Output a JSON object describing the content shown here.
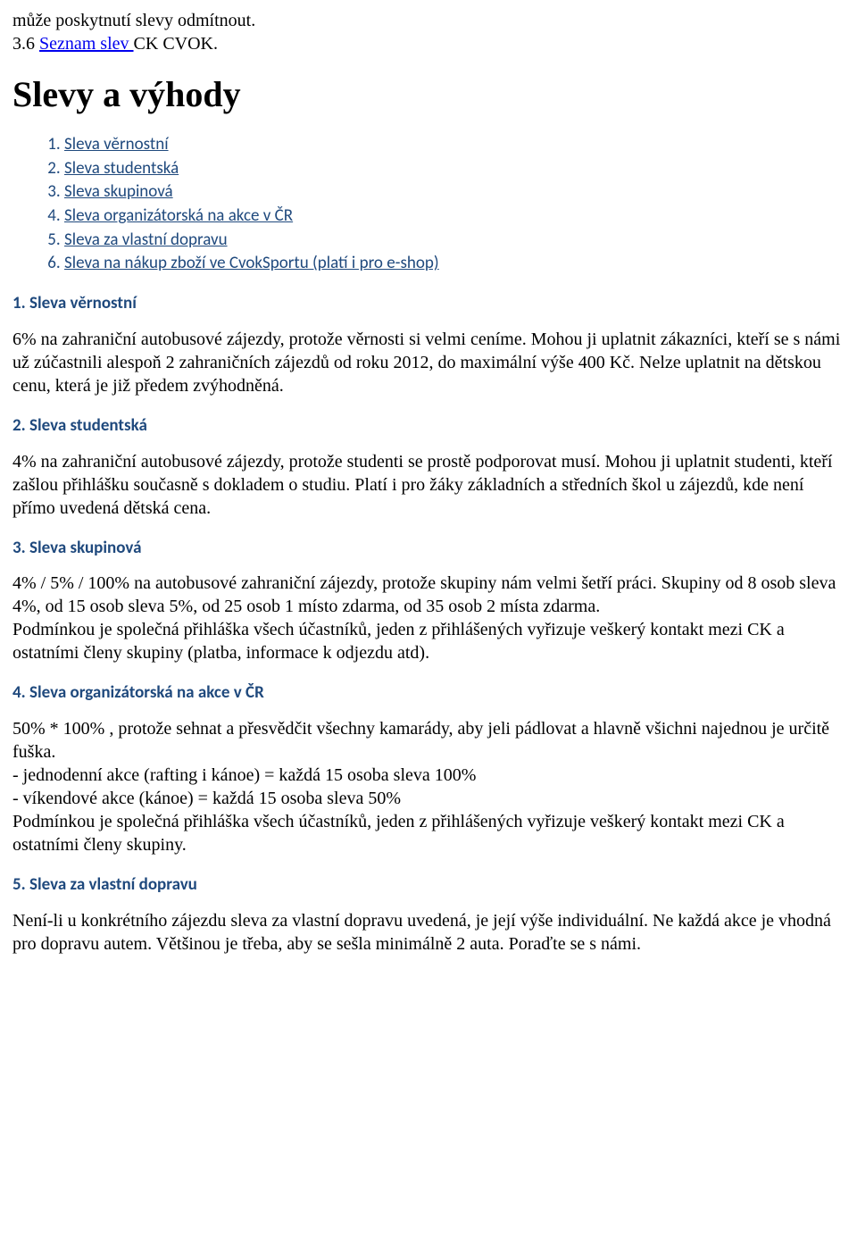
{
  "intro": {
    "line1": "může poskytnutí slevy odmítnout.",
    "line2_prefix": "3.6 ",
    "line2_link": "Seznam slev ",
    "line2_suffix": " CK CVOK."
  },
  "title": "Slevy a výhody",
  "toc": [
    "Sleva věrnostní",
    "Sleva studentská",
    "Sleva skupinová",
    "Sleva organizátorská na akce v ČR",
    "Sleva za vlastní dopravu",
    "Sleva na nákup zboží ve CvokSportu (platí i pro e-shop)"
  ],
  "sections": {
    "s1": {
      "heading": "1. Sleva věrnostní",
      "body": "6%  na zahraniční autobusové zájezdy, protože věrnosti si velmi ceníme. Mohou ji uplatnit zákazníci, kteří se s námi už zúčastnili alespoň 2 zahraničních zájezdů od roku 2012, do maximální výše 400 Kč. Nelze uplatnit na dětskou cenu, která je již předem zvýhodněná."
    },
    "s2": {
      "heading": "2. Sleva studentská",
      "body": "4%  na zahraniční autobusové zájezdy, protože studenti se prostě podporovat musí. Mohou ji uplatnit studenti, kteří zašlou přihlášku současně s dokladem o studiu. Platí i pro žáky základních a středních škol u zájezdů, kde není přímo uvedená dětská cena."
    },
    "s3": {
      "heading": "3. Sleva skupinová",
      "body_p1": "4% / 5% / 100%  na autobusové zahraniční zájezdy, protože skupiny nám velmi šetří práci. Skupiny od 8 osob sleva 4%, od 15 osob sleva 5%, od 25 osob 1 místo zdarma, od 35 osob 2 místa zdarma.",
      "body_p2": "Podmínkou je společná přihláška všech účastníků, jeden z přihlášených vyřizuje veškerý kontakt mezi CK a ostatními členy skupiny (platba, informace k odjezdu atd)."
    },
    "s4": {
      "heading": "4. Sleva organizátorská na akce v ČR",
      "body_l1": "50% * 100% , protože sehnat a přesvědčit všechny kamarády, aby jeli pádlovat a hlavně všichni najednou je určitě fuška.",
      "body_l2": "- jednodenní akce (rafting i kánoe) = každá 15 osoba sleva 100%",
      "body_l3": "- víkendové akce (kánoe) = každá 15 osoba sleva 50%",
      "body_l4": "Podmínkou je společná přihláška všech účastníků, jeden z přihlášených vyřizuje veškerý kontakt mezi CK a ostatními členy skupiny."
    },
    "s5": {
      "heading": "5. Sleva za vlastní dopravu",
      "body": "Není-li u konkrétního zájezdu sleva za vlastní dopravu uvedená, je její výše individuální. Ne každá akce je vhodná pro dopravu autem. Většinou je třeba, aby se sešla minimálně 2 auta. Poraďte se s námi."
    }
  }
}
